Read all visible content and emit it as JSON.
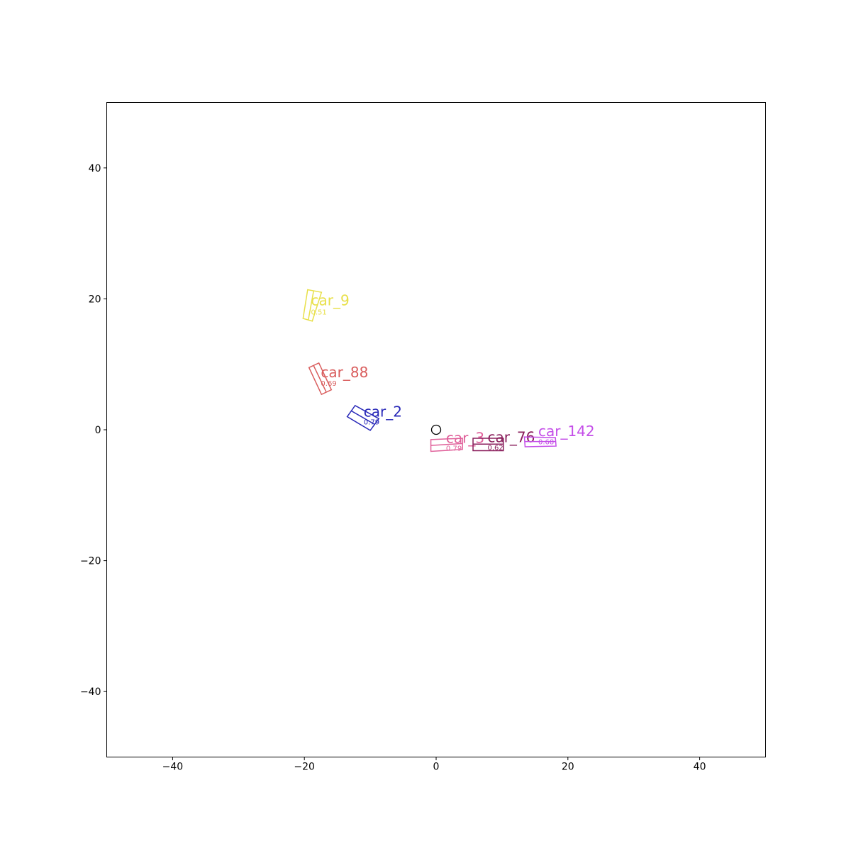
{
  "chart_data": {
    "type": "scatter",
    "title": "",
    "xlabel": "",
    "ylabel": "",
    "xlim": [
      -50,
      50
    ],
    "ylim": [
      -50,
      50
    ],
    "xticks": [
      -40,
      -20,
      0,
      20,
      40
    ],
    "yticks": [
      -40,
      -20,
      0,
      20,
      40
    ],
    "xtick_labels": [
      "−40",
      "−20",
      "0",
      "20",
      "40"
    ],
    "ytick_labels": [
      "−40",
      "−20",
      "0",
      "20",
      "40"
    ],
    "grid": false,
    "ego": {
      "x": 0,
      "y": 0,
      "radius": 0.7,
      "marker": "circle",
      "color": "#000000"
    },
    "objects": [
      {
        "label": "car_9",
        "score": "0.51",
        "color": "#e8e04a",
        "corners": [
          [
            -20.2,
            17.0
          ],
          [
            -18.8,
            16.6
          ],
          [
            -17.4,
            21.0
          ],
          [
            -19.5,
            21.4
          ]
        ],
        "heading": [
          [
            -19.4,
            16.8
          ],
          [
            -18.6,
            21.2
          ]
        ],
        "label_pos": [
          -19,
          19
        ],
        "score_pos": [
          -19,
          17.6
        ]
      },
      {
        "label": "car_88",
        "score": "0.69",
        "color": "#d95d5d",
        "corners": [
          [
            -19.3,
            9.5
          ],
          [
            -17.8,
            10.2
          ],
          [
            -15.9,
            6.1
          ],
          [
            -17.4,
            5.4
          ]
        ],
        "heading": [
          [
            -18.6,
            9.8
          ],
          [
            -16.7,
            5.8
          ]
        ],
        "label_pos": [
          -17.5,
          8.0
        ],
        "score_pos": [
          -17.5,
          6.7
        ]
      },
      {
        "label": "car_2",
        "score": "0.79",
        "color": "#2828b8",
        "corners": [
          [
            -13.5,
            2.0
          ],
          [
            -12.3,
            3.7
          ],
          [
            -8.7,
            1.7
          ],
          [
            -10.0,
            -0.1
          ]
        ],
        "heading": [
          [
            -12.9,
            2.9
          ],
          [
            -9.3,
            0.8
          ]
        ],
        "label_pos": [
          -11.0,
          2.0
        ],
        "score_pos": [
          -11.0,
          0.8
        ]
      },
      {
        "label": "car_3",
        "score": "0.79",
        "color": "#e0609a",
        "corners": [
          [
            -0.8,
            -1.5
          ],
          [
            4.0,
            -1.3
          ],
          [
            4.0,
            -3.0
          ],
          [
            -0.8,
            -3.3
          ]
        ],
        "heading": [
          [
            -0.8,
            -2.4
          ],
          [
            4.0,
            -2.1
          ]
        ],
        "label_pos": [
          1.5,
          -2.0
        ],
        "score_pos": [
          1.5,
          -3.2
        ]
      },
      {
        "label": "car_76",
        "score": "0.62",
        "color": "#8a1f5c",
        "corners": [
          [
            5.6,
            -1.3
          ],
          [
            10.2,
            -1.3
          ],
          [
            10.2,
            -3.2
          ],
          [
            5.6,
            -3.2
          ]
        ],
        "heading": [
          [
            5.6,
            -2.2
          ],
          [
            10.2,
            -2.2
          ]
        ],
        "label_pos": [
          7.8,
          -1.9
        ],
        "score_pos": [
          7.8,
          -3.1
        ]
      },
      {
        "label": "car_142",
        "score": "0.68",
        "color": "#c44ee8",
        "corners": [
          [
            13.4,
            -1.1
          ],
          [
            18.1,
            -1.2
          ],
          [
            18.2,
            -2.5
          ],
          [
            13.5,
            -2.6
          ]
        ],
        "heading": [
          [
            13.4,
            -1.8
          ],
          [
            18.1,
            -1.8
          ]
        ],
        "label_pos": [
          15.5,
          -1.0
        ],
        "score_pos": [
          15.5,
          -2.2
        ]
      }
    ]
  }
}
